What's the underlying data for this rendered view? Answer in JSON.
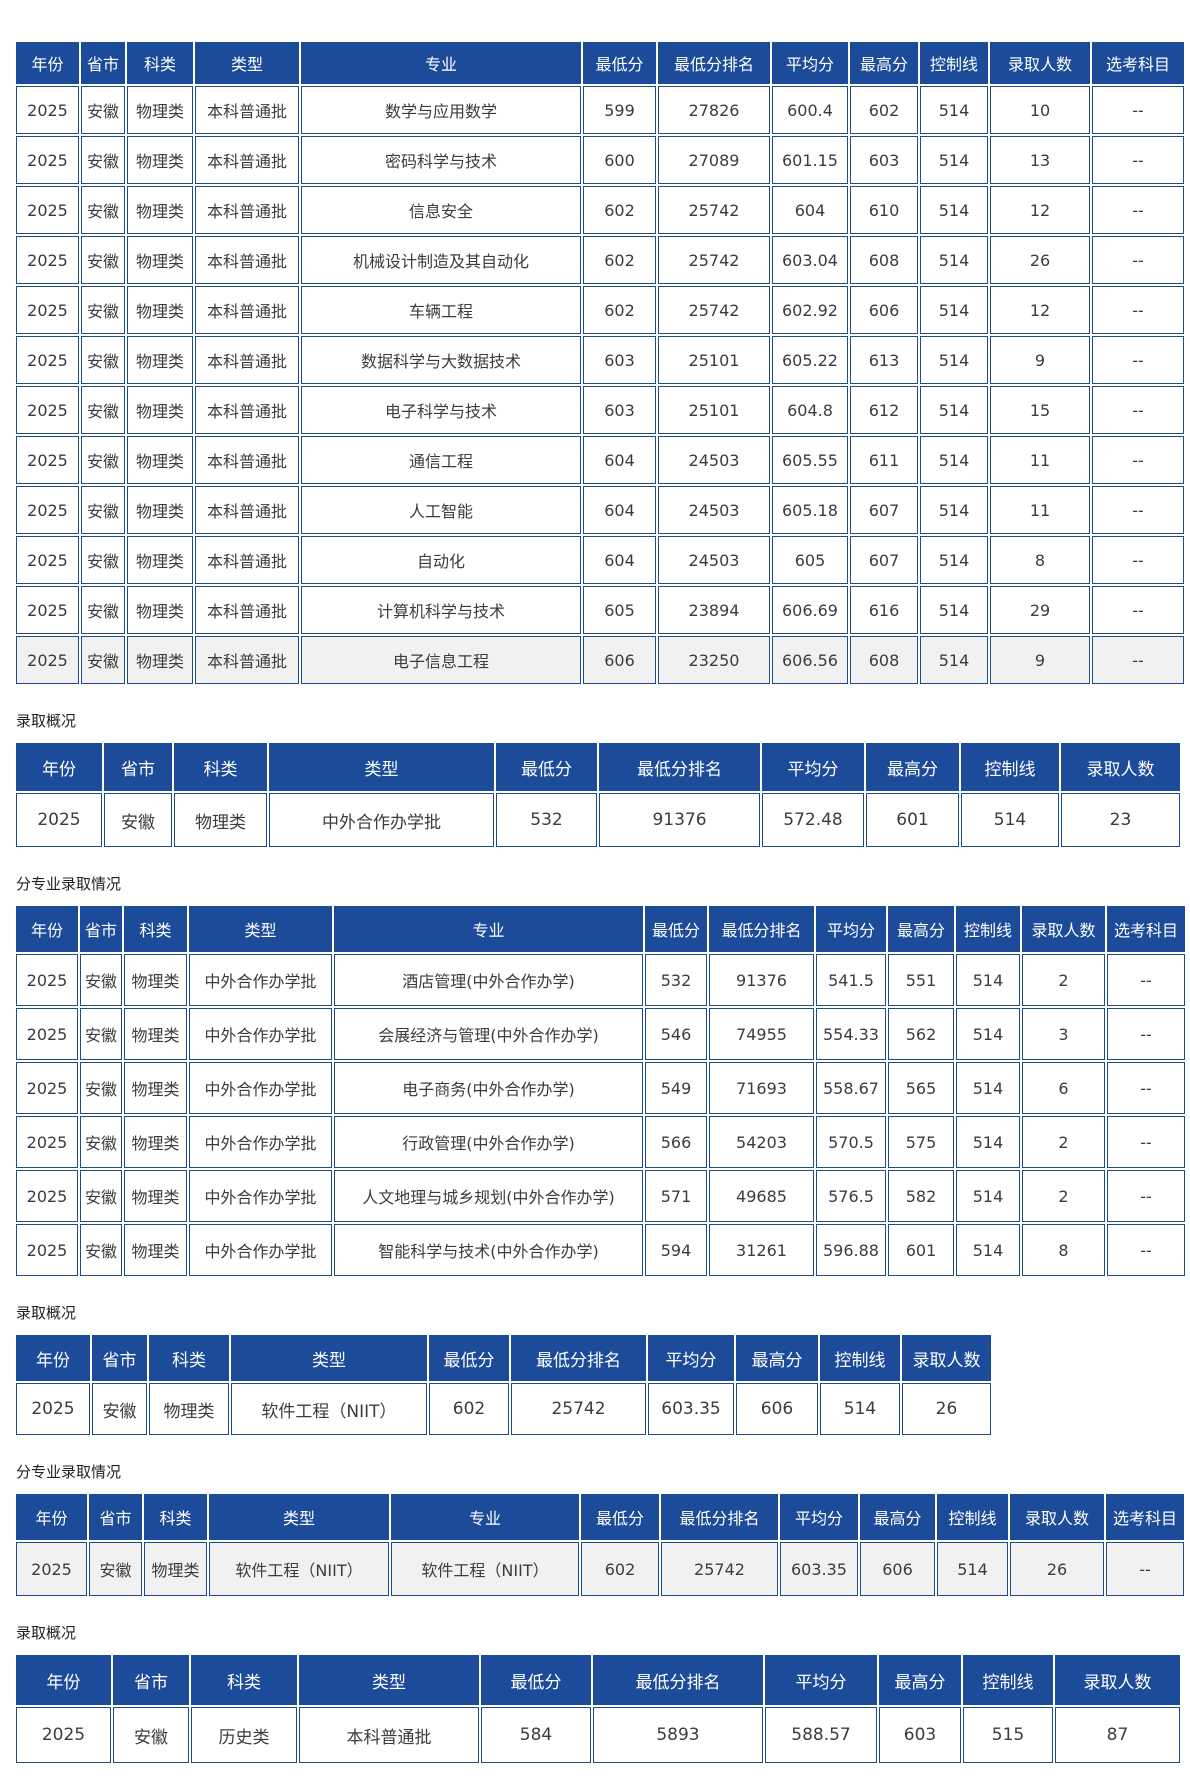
{
  "colors": {
    "header_bg": "#1c4b99",
    "header_text": "#ffffff",
    "border": "#1d4d87",
    "cell_text": "#3c3c3c",
    "shaded_row_bg": "#f1f1f1",
    "label_text": "#222222"
  },
  "sections": [
    {
      "label": "",
      "table": {
        "columns": [
          "年份",
          "省市",
          "科类",
          "类型",
          "专业",
          "最低分",
          "最低分排名",
          "平均分",
          "最高分",
          "控制线",
          "录取人数",
          "选考科目"
        ],
        "shaded_rows": [
          11
        ],
        "rows": [
          [
            "2025",
            "安徽",
            "物理类",
            "本科普通批",
            "数学与应用数学",
            "599",
            "27826",
            "600.4",
            "602",
            "514",
            "10",
            "--"
          ],
          [
            "2025",
            "安徽",
            "物理类",
            "本科普通批",
            "密码科学与技术",
            "600",
            "27089",
            "601.15",
            "603",
            "514",
            "13",
            "--"
          ],
          [
            "2025",
            "安徽",
            "物理类",
            "本科普通批",
            "信息安全",
            "602",
            "25742",
            "604",
            "610",
            "514",
            "12",
            "--"
          ],
          [
            "2025",
            "安徽",
            "物理类",
            "本科普通批",
            "机械设计制造及其自动化",
            "602",
            "25742",
            "603.04",
            "608",
            "514",
            "26",
            "--"
          ],
          [
            "2025",
            "安徽",
            "物理类",
            "本科普通批",
            "车辆工程",
            "602",
            "25742",
            "602.92",
            "606",
            "514",
            "12",
            "--"
          ],
          [
            "2025",
            "安徽",
            "物理类",
            "本科普通批",
            "数据科学与大数据技术",
            "603",
            "25101",
            "605.22",
            "613",
            "514",
            "9",
            "--"
          ],
          [
            "2025",
            "安徽",
            "物理类",
            "本科普通批",
            "电子科学与技术",
            "603",
            "25101",
            "604.8",
            "612",
            "514",
            "15",
            "--"
          ],
          [
            "2025",
            "安徽",
            "物理类",
            "本科普通批",
            "通信工程",
            "604",
            "24503",
            "605.55",
            "611",
            "514",
            "11",
            "--"
          ],
          [
            "2025",
            "安徽",
            "物理类",
            "本科普通批",
            "人工智能",
            "604",
            "24503",
            "605.18",
            "607",
            "514",
            "11",
            "--"
          ],
          [
            "2025",
            "安徽",
            "物理类",
            "本科普通批",
            "自动化",
            "604",
            "24503",
            "605",
            "607",
            "514",
            "8",
            "--"
          ],
          [
            "2025",
            "安徽",
            "物理类",
            "本科普通批",
            "计算机科学与技术",
            "605",
            "23894",
            "606.69",
            "616",
            "514",
            "29",
            "--"
          ],
          [
            "2025",
            "安徽",
            "物理类",
            "本科普通批",
            "电子信息工程",
            "606",
            "23250",
            "606.56",
            "608",
            "514",
            "9",
            "--"
          ]
        ]
      }
    },
    {
      "label": "录取概况",
      "table": {
        "columns": [
          "年份",
          "省市",
          "科类",
          "类型",
          "最低分",
          "最低分排名",
          "平均分",
          "最高分",
          "控制线",
          "录取人数"
        ],
        "shaded_rows": [],
        "rows": [
          [
            "2025",
            "安徽",
            "物理类",
            "中外合作办学批",
            "532",
            "91376",
            "572.48",
            "601",
            "514",
            "23"
          ]
        ]
      }
    },
    {
      "label": "分专业录取情况",
      "table": {
        "columns": [
          "年份",
          "省市",
          "科类",
          "类型",
          "专业",
          "最低分",
          "最低分排名",
          "平均分",
          "最高分",
          "控制线",
          "录取人数",
          "选考科目"
        ],
        "shaded_rows": [],
        "rows": [
          [
            "2025",
            "安徽",
            "物理类",
            "中外合作办学批",
            "酒店管理(中外合作办学)",
            "532",
            "91376",
            "541.5",
            "551",
            "514",
            "2",
            "--"
          ],
          [
            "2025",
            "安徽",
            "物理类",
            "中外合作办学批",
            "会展经济与管理(中外合作办学)",
            "546",
            "74955",
            "554.33",
            "562",
            "514",
            "3",
            "--"
          ],
          [
            "2025",
            "安徽",
            "物理类",
            "中外合作办学批",
            "电子商务(中外合作办学)",
            "549",
            "71693",
            "558.67",
            "565",
            "514",
            "6",
            "--"
          ],
          [
            "2025",
            "安徽",
            "物理类",
            "中外合作办学批",
            "行政管理(中外合作办学)",
            "566",
            "54203",
            "570.5",
            "575",
            "514",
            "2",
            "--"
          ],
          [
            "2025",
            "安徽",
            "物理类",
            "中外合作办学批",
            "人文地理与城乡规划(中外合作办学)",
            "571",
            "49685",
            "576.5",
            "582",
            "514",
            "2",
            "--"
          ],
          [
            "2025",
            "安徽",
            "物理类",
            "中外合作办学批",
            "智能科学与技术(中外合作办学)",
            "594",
            "31261",
            "596.88",
            "601",
            "514",
            "8",
            "--"
          ]
        ]
      }
    },
    {
      "label": "录取概况",
      "table": {
        "columns": [
          "年份",
          "省市",
          "科类",
          "类型",
          "最低分",
          "最低分排名",
          "平均分",
          "最高分",
          "控制线",
          "录取人数"
        ],
        "shaded_rows": [],
        "rows": [
          [
            "2025",
            "安徽",
            "物理类",
            "软件工程（NIIT）",
            "602",
            "25742",
            "603.35",
            "606",
            "514",
            "26"
          ]
        ]
      }
    },
    {
      "label": "分专业录取情况",
      "table": {
        "columns": [
          "年份",
          "省市",
          "科类",
          "类型",
          "专业",
          "最低分",
          "最低分排名",
          "平均分",
          "最高分",
          "控制线",
          "录取人数",
          "选考科目"
        ],
        "shaded_rows": [
          0
        ],
        "rows": [
          [
            "2025",
            "安徽",
            "物理类",
            "软件工程（NIIT）",
            "软件工程（NIIT）",
            "602",
            "25742",
            "603.35",
            "606",
            "514",
            "26",
            "--"
          ]
        ]
      }
    },
    {
      "label": "录取概况",
      "table": {
        "columns": [
          "年份",
          "省市",
          "科类",
          "类型",
          "最低分",
          "最低分排名",
          "平均分",
          "最高分",
          "控制线",
          "录取人数"
        ],
        "shaded_rows": [],
        "rows": [
          [
            "2025",
            "安徽",
            "历史类",
            "本科普通批",
            "584",
            "5893",
            "588.57",
            "603",
            "515",
            "87"
          ]
        ]
      }
    }
  ]
}
